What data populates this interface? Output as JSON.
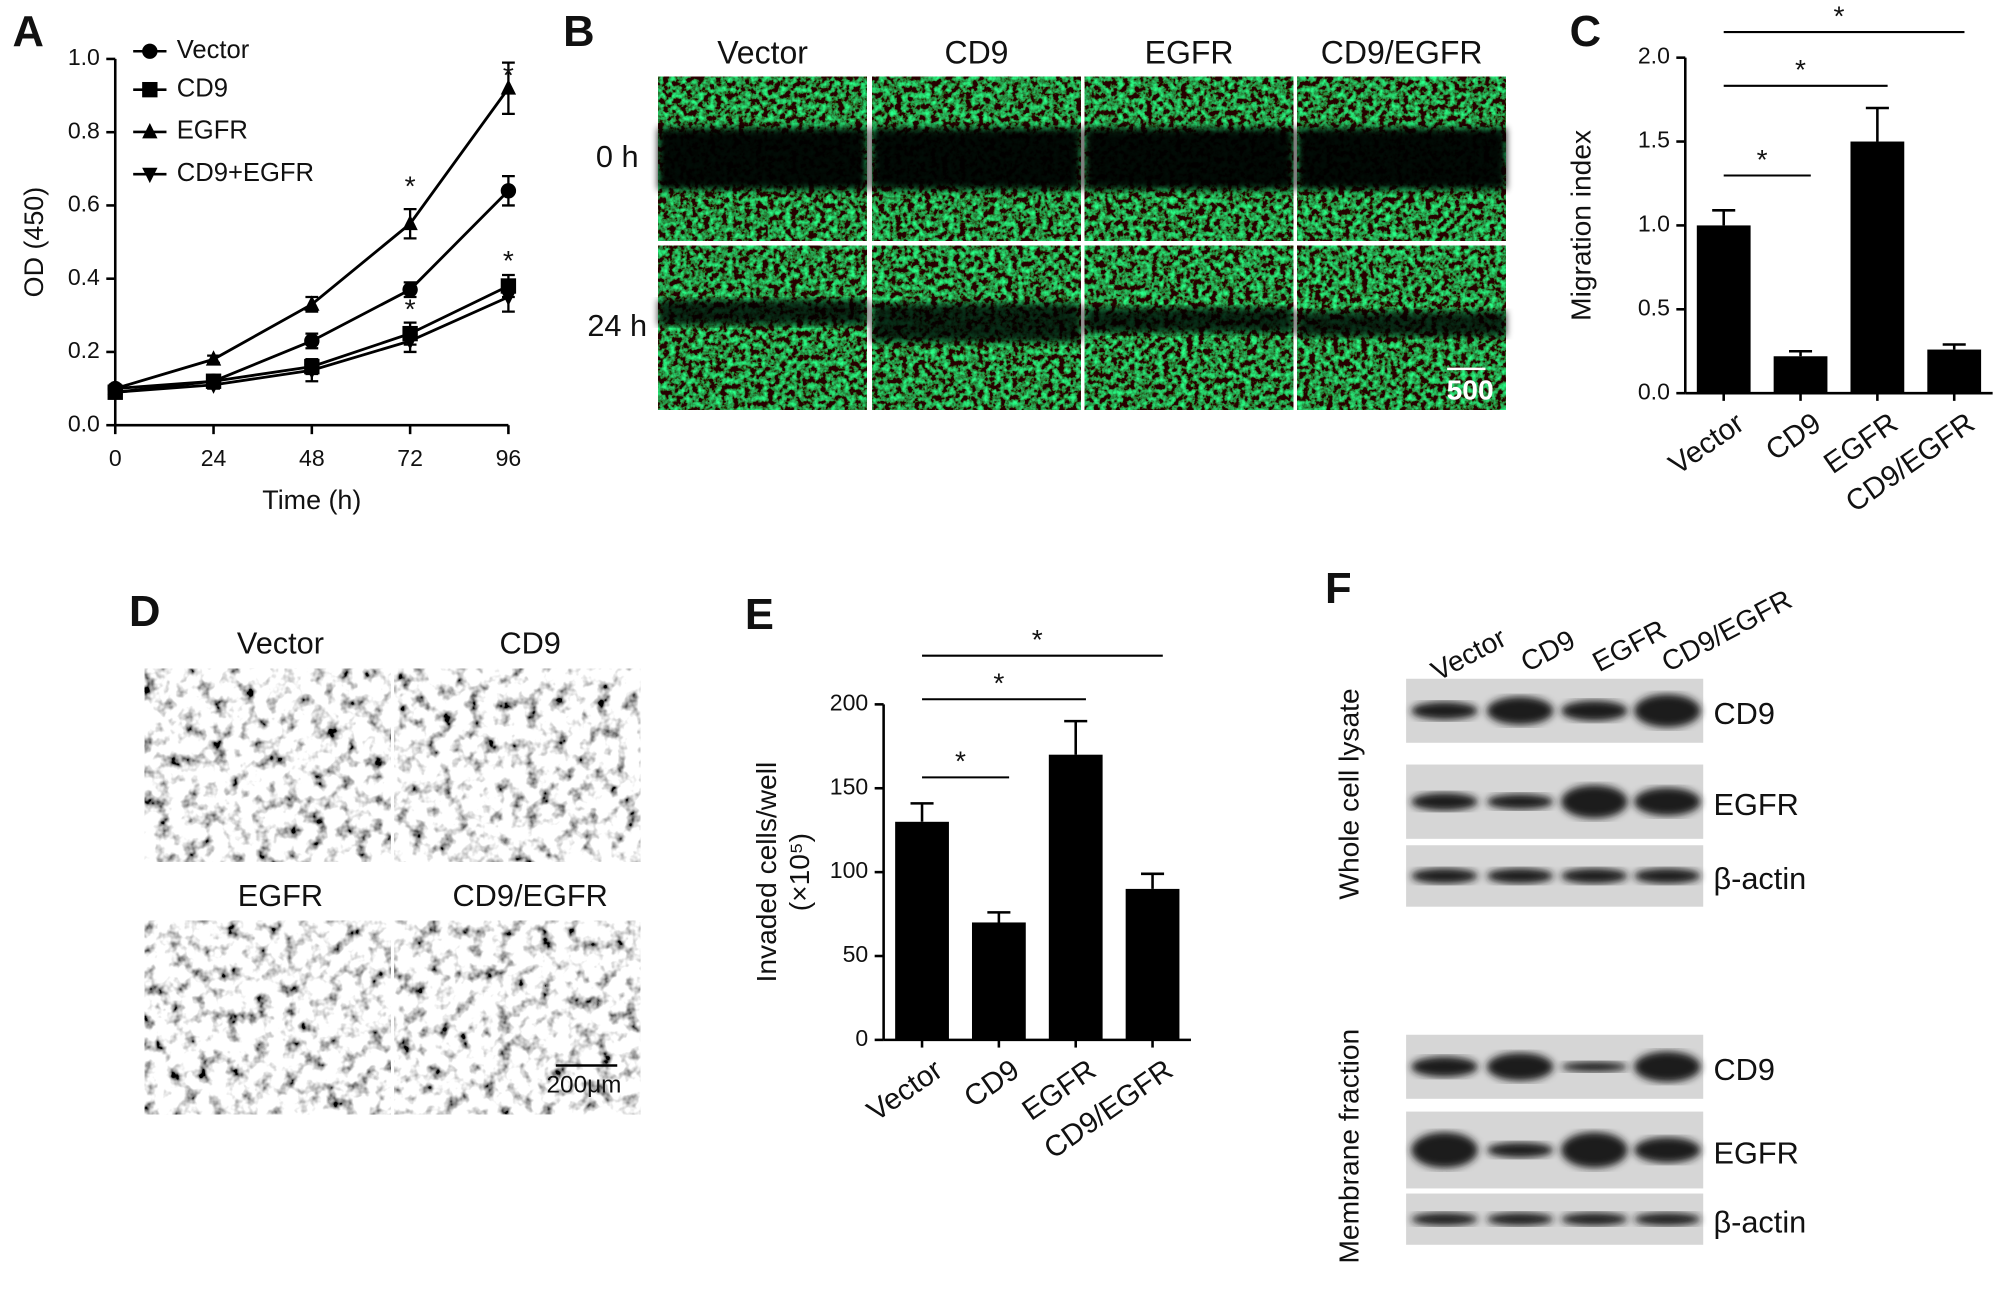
{
  "panel_labels": [
    "A",
    "B",
    "C",
    "D",
    "E",
    "F"
  ],
  "chart_data": [
    {
      "type": "line",
      "xlabel": "Time (h)",
      "ylabel": "OD (450)",
      "x": [
        0,
        24,
        48,
        72,
        96
      ],
      "xlim": [
        0,
        96
      ],
      "xticks": [
        0,
        24,
        48,
        72,
        96
      ],
      "ylim": [
        0,
        1
      ],
      "yticks": [
        {
          "value": 0,
          "label": "0.0"
        },
        {
          "value": 0.2,
          "label": "0.2"
        },
        {
          "value": 0.4,
          "label": "0.4"
        },
        {
          "value": 0.6,
          "label": "0.6"
        },
        {
          "value": 0.8,
          "label": "0.8"
        },
        {
          "value": 1,
          "label": "1.0"
        }
      ],
      "legend": "upper left",
      "series": [
        {
          "name": "Vector",
          "color": "#000000",
          "marker": "circle",
          "values": [
            0.1,
            0.12,
            0.23,
            0.37,
            0.64
          ],
          "errors": [
            0.01,
            0.01,
            0.02,
            0.02,
            0.04
          ]
        },
        {
          "name": "CD9",
          "color": "#000000",
          "marker": "square",
          "values": [
            0.09,
            0.12,
            0.16,
            0.25,
            0.38
          ],
          "errors": [
            0.01,
            0.01,
            0.02,
            0.03,
            0.03
          ]
        },
        {
          "name": "EGFR",
          "color": "#000000",
          "marker": "triangle",
          "values": [
            0.1,
            0.18,
            0.33,
            0.55,
            0.92
          ],
          "errors": [
            0.01,
            0.01,
            0.02,
            0.04,
            0.07
          ]
        },
        {
          "name": "CD9+EGFR",
          "color": "#000000",
          "marker": "triangle-down",
          "values": [
            0.09,
            0.11,
            0.15,
            0.23,
            0.35
          ],
          "errors": [
            0.01,
            0.01,
            0.03,
            0.03,
            0.04
          ]
        }
      ],
      "annotations": [
        {
          "text": "*",
          "x": 72
        },
        {
          "text": "*",
          "x": 72
        },
        {
          "text": "*",
          "x": 96
        },
        {
          "text": "*",
          "x": 96
        }
      ]
    },
    {
      "type": "bar",
      "ylabel": "Migration index",
      "categories": [
        "Vector",
        "CD9",
        "EGFR",
        "CD9/EGFR"
      ],
      "values": [
        1.0,
        0.22,
        1.5,
        0.26
      ],
      "errors": [
        0.09,
        0.03,
        0.2,
        0.03
      ],
      "color": "#000000",
      "ylim": [
        0,
        2
      ],
      "yticks": [
        {
          "value": 0,
          "label": "0.0"
        },
        {
          "value": 0.5,
          "label": "0.5"
        },
        {
          "value": 1,
          "label": "1.0"
        },
        {
          "value": 1.5,
          "label": "1.5"
        },
        {
          "value": 2,
          "label": "2.0"
        }
      ],
      "significance": [
        {
          "pair": [
            "Vector",
            "CD9"
          ],
          "label": "*"
        },
        {
          "pair": [
            "Vector",
            "EGFR"
          ],
          "label": "*"
        },
        {
          "pair": [
            "Vector",
            "CD9/EGFR"
          ],
          "label": "*"
        }
      ]
    },
    {
      "type": "bar",
      "ylabel": [
        "Invaded cells/well",
        "(×10⁵)"
      ],
      "categories": [
        "Vector",
        "CD9",
        "EGFR",
        "CD9/EGFR"
      ],
      "values": [
        130,
        70,
        170,
        90
      ],
      "errors": [
        11,
        6,
        20,
        9
      ],
      "color": "#000000",
      "ylim": [
        0,
        200
      ],
      "yticks": [
        0,
        50,
        100,
        150,
        200
      ],
      "significance": [
        {
          "pair": [
            "Vector",
            "CD9"
          ],
          "label": "*"
        },
        {
          "pair": [
            "Vector",
            "EGFR"
          ],
          "label": "*"
        },
        {
          "pair": [
            "Vector",
            "CD9/EGFR"
          ],
          "label": "*"
        }
      ]
    }
  ],
  "panel_b": {
    "columns": [
      "Vector",
      "CD9",
      "EGFR",
      "CD9/EGFR"
    ],
    "rows": [
      "0 h",
      "24 h"
    ],
    "scale_bar": "500"
  },
  "panel_d": {
    "images": [
      "Vector",
      "CD9",
      "EGFR",
      "CD9/EGFR"
    ],
    "scale_bar": "200μm"
  },
  "panel_f": {
    "lanes": [
      "Vector",
      "CD9",
      "EGFR",
      "CD9/EGFR"
    ],
    "groups": [
      {
        "name": "Whole cell lysate",
        "bands": [
          "CD9",
          "EGFR",
          "β-actin"
        ]
      },
      {
        "name": "Membrane fraction",
        "bands": [
          "CD9",
          "EGFR",
          "β-actin"
        ]
      }
    ]
  }
}
